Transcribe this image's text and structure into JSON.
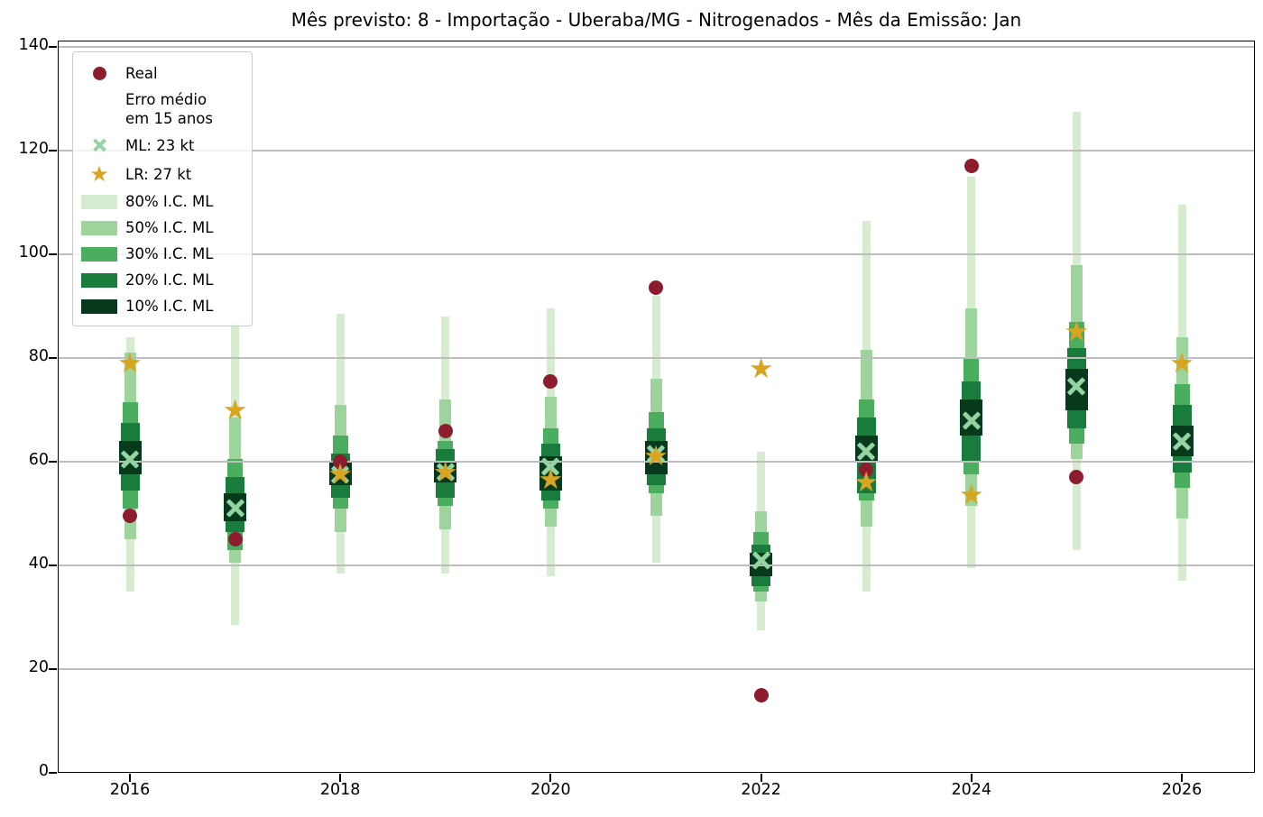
{
  "title": "Mês previsto: 8 - Importação - Uberaba/MG - Nitrogenados - Mês da Emissão: Jan",
  "colors": {
    "real": "#8d1c2e",
    "ml_x": "#95d3a2",
    "lr_star": "#d9a521",
    "ci80": "#d5ecd1",
    "ci50": "#9dd49b",
    "ci30": "#4bae5e",
    "ci20": "#197c3d",
    "ci10": "#07391c",
    "grid": "#bdbdbd",
    "axis": "#000000"
  },
  "chart_data": {
    "type": "bar",
    "subtype": "forecast-confidence-interval-fan",
    "title": "Mês previsto: 8 - Importação - Uberaba/MG - Nitrogenados - Mês da Emissão: Jan",
    "xlabel": "",
    "ylabel": "",
    "unit": "kt",
    "ylim": [
      0,
      141
    ],
    "y_ticks": [
      0,
      20,
      40,
      60,
      80,
      100,
      120,
      140
    ],
    "x_tick_years": [
      2016,
      2018,
      2020,
      2022,
      2024,
      2026
    ],
    "grid": "horizontal",
    "legend_position": "upper-left",
    "legend": {
      "entries": [
        {
          "label": "Real",
          "marker": "circle",
          "color_key": "real"
        },
        {
          "label": "Erro médio\nem 15 anos",
          "marker": "none",
          "color_key": null
        },
        {
          "label": "ML: 23 kt",
          "marker": "x",
          "color_key": "ml_x"
        },
        {
          "label": "LR: 27 kt",
          "marker": "star",
          "color_key": "lr_star"
        },
        {
          "label": "80% I.C. ML",
          "marker": "patch",
          "color_key": "ci80"
        },
        {
          "label": "50% I.C. ML",
          "marker": "patch",
          "color_key": "ci50"
        },
        {
          "label": "30% I.C. ML",
          "marker": "patch",
          "color_key": "ci30"
        },
        {
          "label": "20% I.C. ML",
          "marker": "patch",
          "color_key": "ci20"
        },
        {
          "label": "10% I.C. ML",
          "marker": "patch",
          "color_key": "ci10"
        }
      ]
    },
    "series": [
      {
        "year": 2016,
        "real": 49.5,
        "ml": 60.5,
        "lr": 79,
        "ci80": [
          35,
          84
        ],
        "ci50": [
          45,
          81
        ],
        "ci30": [
          51,
          71.5
        ],
        "ci20": [
          54.5,
          67.5
        ],
        "ci10": [
          57.5,
          64
        ]
      },
      {
        "year": 2017,
        "real": 45,
        "ml": 51,
        "lr": 70,
        "ci80": [
          28.5,
          87
        ],
        "ci50": [
          40.5,
          68.5
        ],
        "ci30": [
          43,
          60.5
        ],
        "ci20": [
          46.5,
          57
        ],
        "ci10": [
          48.5,
          54
        ]
      },
      {
        "year": 2018,
        "real": 60,
        "ml": 57.5,
        "lr": 57.5,
        "ci80": [
          38.5,
          88.5
        ],
        "ci50": [
          46.5,
          71
        ],
        "ci30": [
          51,
          65
        ],
        "ci20": [
          53,
          61.5
        ],
        "ci10": [
          55.5,
          60
        ]
      },
      {
        "year": 2019,
        "real": 66,
        "ml": 58,
        "lr": 58,
        "ci80": [
          38.5,
          88
        ],
        "ci50": [
          47,
          72
        ],
        "ci30": [
          51.5,
          64
        ],
        "ci20": [
          53,
          62.5
        ],
        "ci10": [
          56,
          60
        ]
      },
      {
        "year": 2020,
        "real": 75.5,
        "ml": 59,
        "lr": 56.5,
        "ci80": [
          38,
          89.5
        ],
        "ci50": [
          47.5,
          72.5
        ],
        "ci30": [
          51,
          66.5
        ],
        "ci20": [
          52.5,
          63.5
        ],
        "ci10": [
          54.5,
          61
        ]
      },
      {
        "year": 2021,
        "real": 93.5,
        "ml": 61.5,
        "lr": 61,
        "ci80": [
          40.5,
          92
        ],
        "ci50": [
          49.5,
          76
        ],
        "ci30": [
          54,
          69.5
        ],
        "ci20": [
          55.5,
          66.5
        ],
        "ci10": [
          57.5,
          64
        ]
      },
      {
        "year": 2022,
        "real": 15,
        "ml": 41,
        "lr": 78,
        "ci80": [
          27.5,
          62
        ],
        "ci50": [
          33,
          50.5
        ],
        "ci30": [
          35,
          46.5
        ],
        "ci20": [
          36,
          44
        ],
        "ci10": [
          38,
          42.5
        ]
      },
      {
        "year": 2023,
        "real": 58.5,
        "ml": 62,
        "lr": 56,
        "ci80": [
          35,
          106.5
        ],
        "ci50": [
          47.5,
          81.5
        ],
        "ci30": [
          52.5,
          72
        ],
        "ci20": [
          54,
          68.5
        ],
        "ci10": [
          60,
          65
        ]
      },
      {
        "year": 2024,
        "real": 117,
        "ml": 68,
        "lr": 53.5,
        "ci80": [
          39.5,
          115
        ],
        "ci50": [
          51.5,
          89.5
        ],
        "ci30": [
          57.5,
          80
        ],
        "ci20": [
          60,
          75.5
        ],
        "ci10": [
          65,
          72
        ]
      },
      {
        "year": 2025,
        "real": 57,
        "ml": 74.5,
        "lr": 85,
        "ci80": [
          43,
          127.5
        ],
        "ci50": [
          60.5,
          98
        ],
        "ci30": [
          63.5,
          87
        ],
        "ci20": [
          66.5,
          82
        ],
        "ci10": [
          70,
          78
        ]
      },
      {
        "year": 2026,
        "real": null,
        "ml": 64,
        "lr": 79,
        "ci80": [
          37,
          109.5
        ],
        "ci50": [
          49,
          84
        ],
        "ci30": [
          55,
          75
        ],
        "ci20": [
          58,
          71
        ],
        "ci10": [
          61,
          67
        ]
      }
    ]
  }
}
